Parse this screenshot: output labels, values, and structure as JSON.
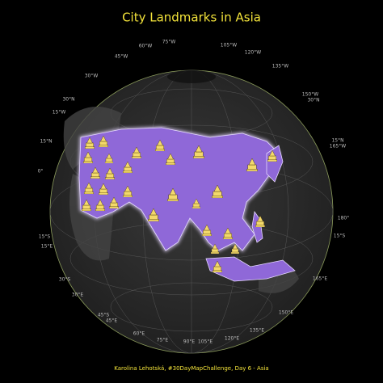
{
  "title": "City  Landmarks in Asia",
  "graticule_labels": [
    "75°W",
    "60°W",
    "105°W",
    "120°W",
    "45°W",
    "135°W",
    "30°W",
    "150°W",
    "30°N",
    "30°N",
    "15°W",
    "15°N",
    "0°",
    "15°N",
    "165°W",
    "180°",
    "15°S",
    "15°E",
    "15°S",
    "30°S",
    "165°E",
    "30°E",
    "45°S",
    "45°E",
    "150°E",
    "135°E",
    "60°E",
    "75°E",
    "90°E",
    "105°E",
    "120°E"
  ],
  "caption": "Karolina Lehotská, #30DayMapChallenge, Day 6 - Asia"
}
